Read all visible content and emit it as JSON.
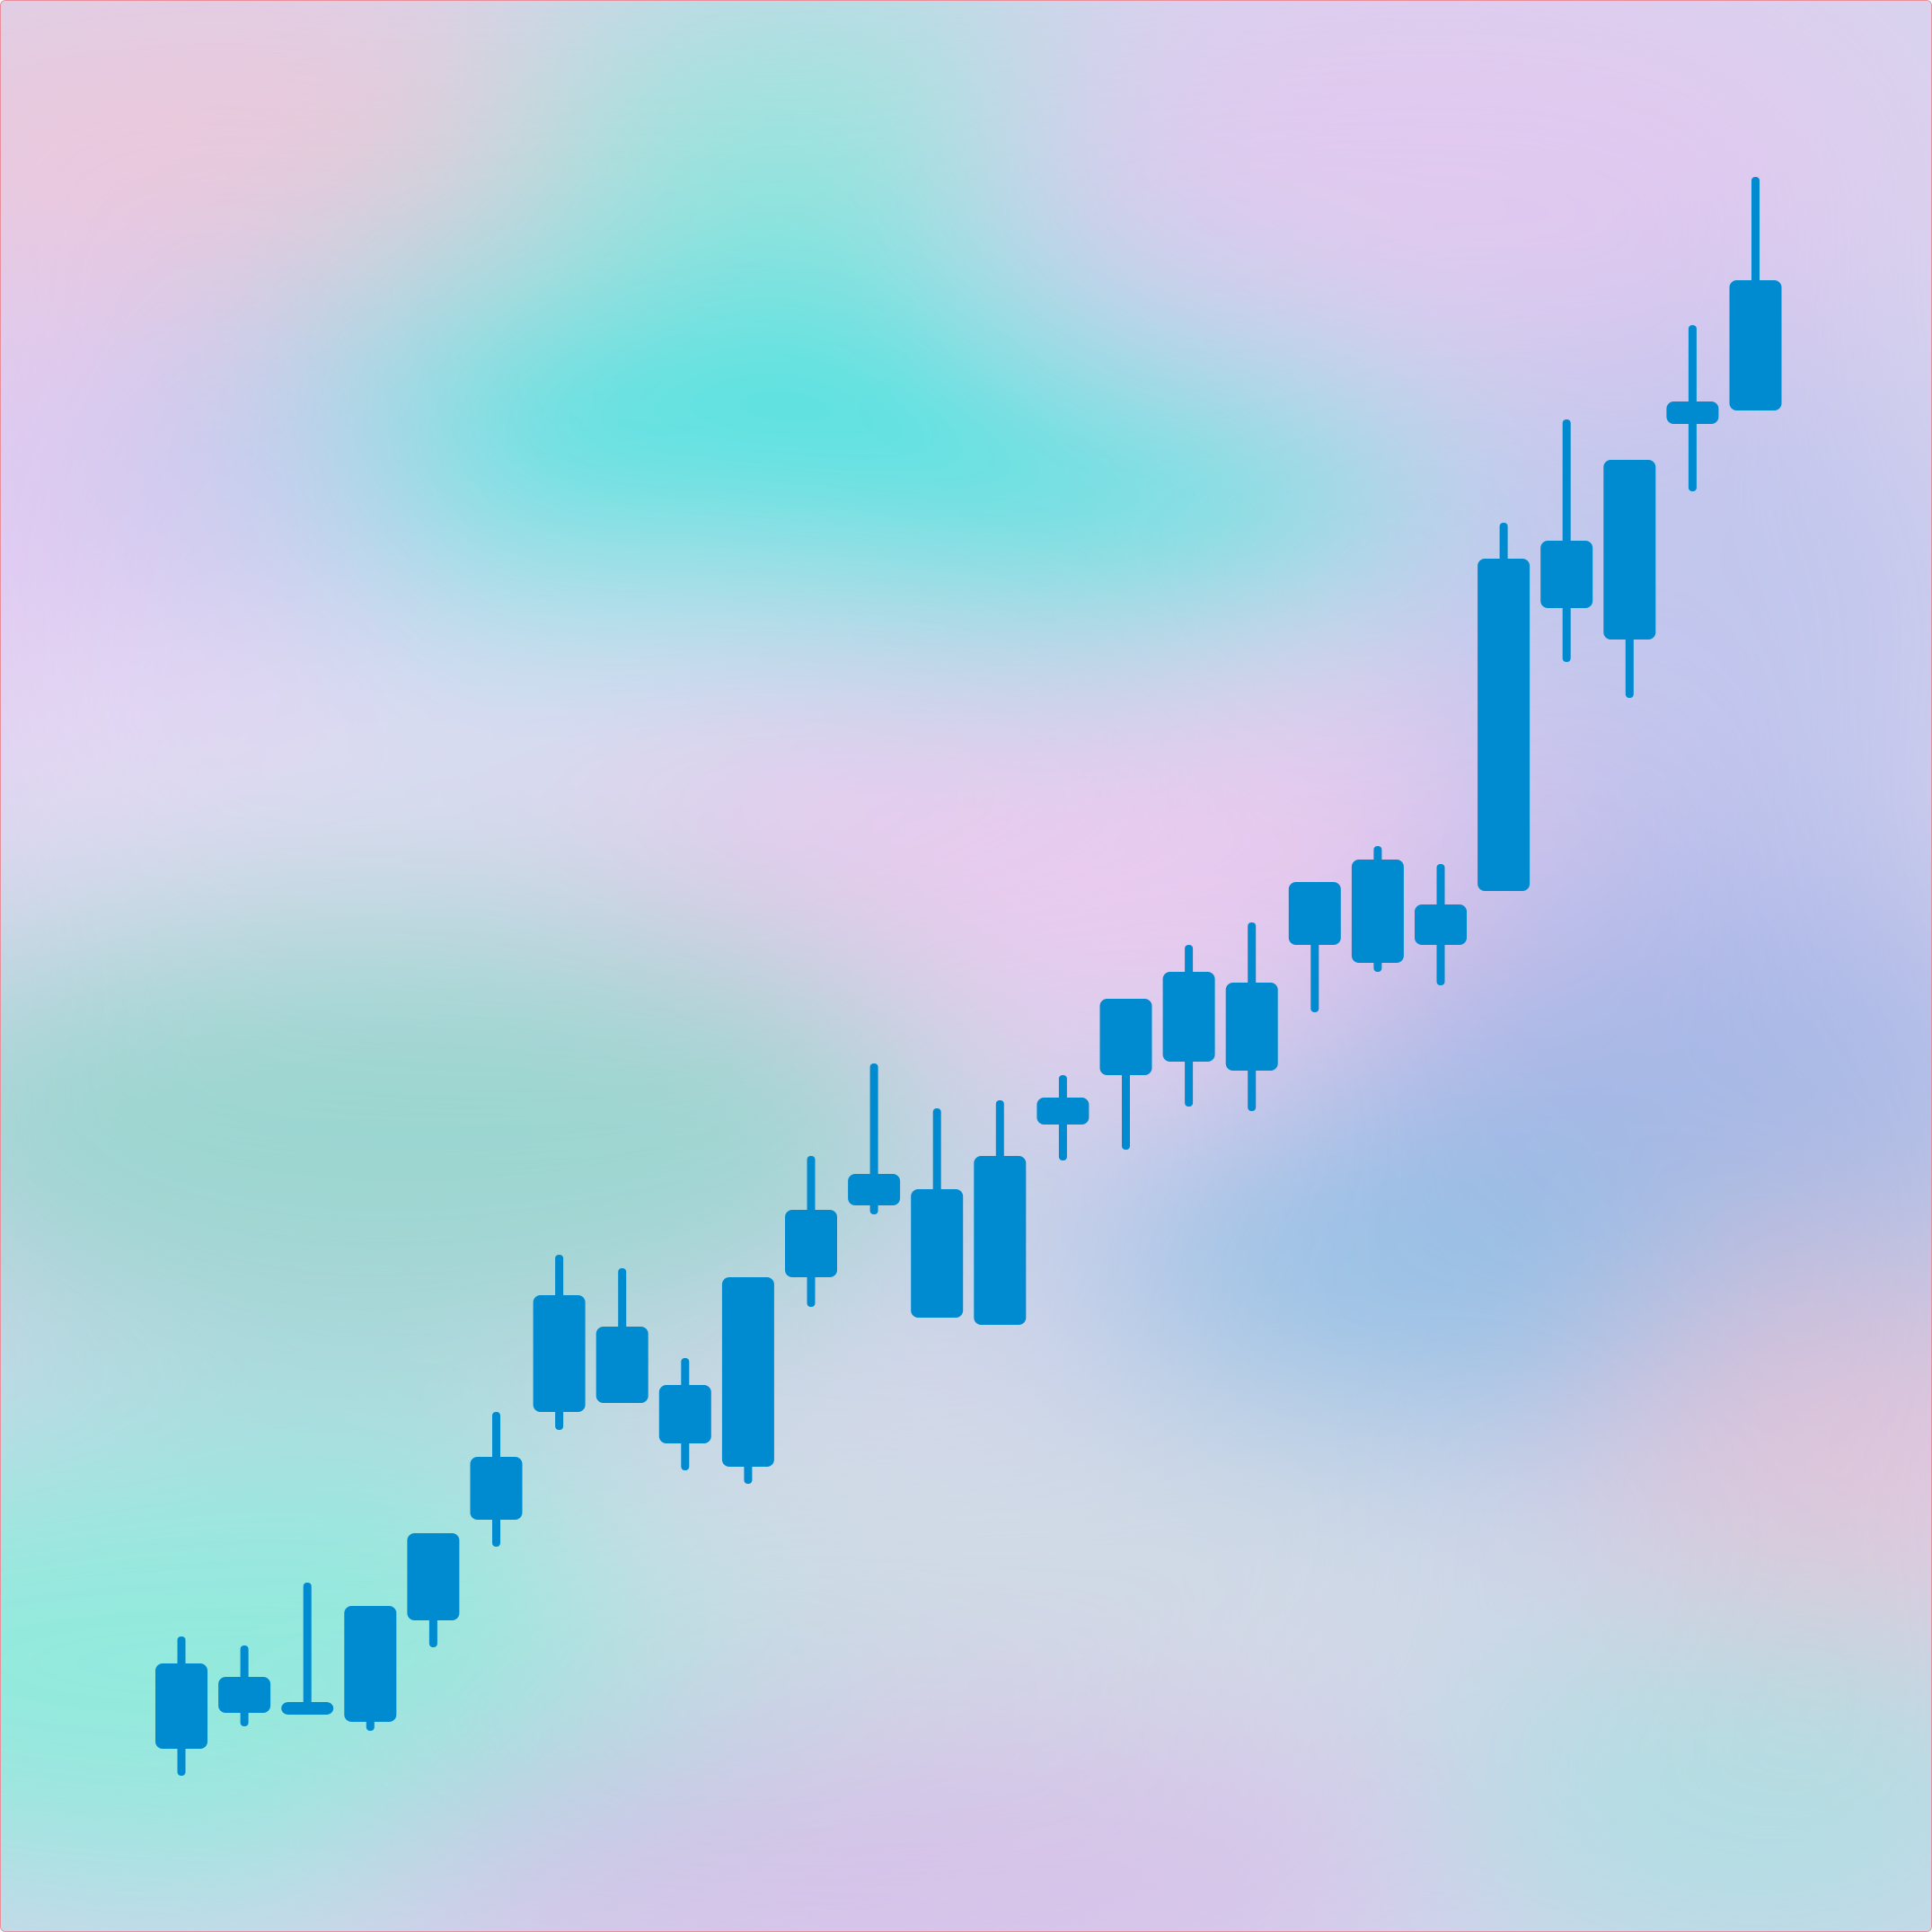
{
  "chart_data": {
    "type": "candlestick",
    "title": "",
    "xlabel": "",
    "ylabel": "",
    "ylim": [
      0,
      2151
    ],
    "grid": false,
    "legend": "none",
    "candles": [
      {
        "open": 205,
        "close": 300,
        "high": 330,
        "low": 175
      },
      {
        "open": 245,
        "close": 285,
        "high": 320,
        "low": 230
      },
      {
        "open": 245,
        "close": 255,
        "high": 390,
        "low": 245
      },
      {
        "open": 235,
        "close": 364,
        "high": 364,
        "low": 225
      },
      {
        "open": 348,
        "close": 445,
        "high": 445,
        "low": 318
      },
      {
        "open": 460,
        "close": 530,
        "high": 580,
        "low": 430
      },
      {
        "open": 580,
        "close": 710,
        "high": 755,
        "low": 560
      },
      {
        "open": 590,
        "close": 675,
        "high": 740,
        "low": 590
      },
      {
        "open": 545,
        "close": 610,
        "high": 640,
        "low": 515
      },
      {
        "open": 519,
        "close": 730,
        "high": 730,
        "low": 500
      },
      {
        "open": 730,
        "close": 805,
        "high": 865,
        "low": 697
      },
      {
        "open": 810,
        "close": 845,
        "high": 968,
        "low": 800
      },
      {
        "open": 685,
        "close": 828,
        "high": 918,
        "low": 685
      },
      {
        "open": 677,
        "close": 865,
        "high": 927,
        "low": 677
      },
      {
        "open": 900,
        "close": 930,
        "high": 955,
        "low": 860
      },
      {
        "open": 955,
        "close": 1040,
        "high": 1040,
        "low": 872
      },
      {
        "open": 970,
        "close": 1070,
        "high": 1100,
        "low": 920
      },
      {
        "open": 960,
        "close": 1058,
        "high": 1125,
        "low": 915
      },
      {
        "open": 1100,
        "close": 1170,
        "high": 1170,
        "low": 1025
      },
      {
        "open": 1080,
        "close": 1195,
        "high": 1210,
        "low": 1070
      },
      {
        "open": 1100,
        "close": 1145,
        "high": 1190,
        "low": 1055
      },
      {
        "open": 1160,
        "close": 1530,
        "high": 1570,
        "low": 1160
      },
      {
        "open": 1475,
        "close": 1550,
        "high": 1685,
        "low": 1415
      },
      {
        "open": 1440,
        "close": 1640,
        "high": 1640,
        "low": 1375
      },
      {
        "open": 1680,
        "close": 1705,
        "high": 1790,
        "low": 1605
      },
      {
        "open": 1695,
        "close": 1840,
        "high": 1955,
        "low": 1695
      }
    ]
  }
}
